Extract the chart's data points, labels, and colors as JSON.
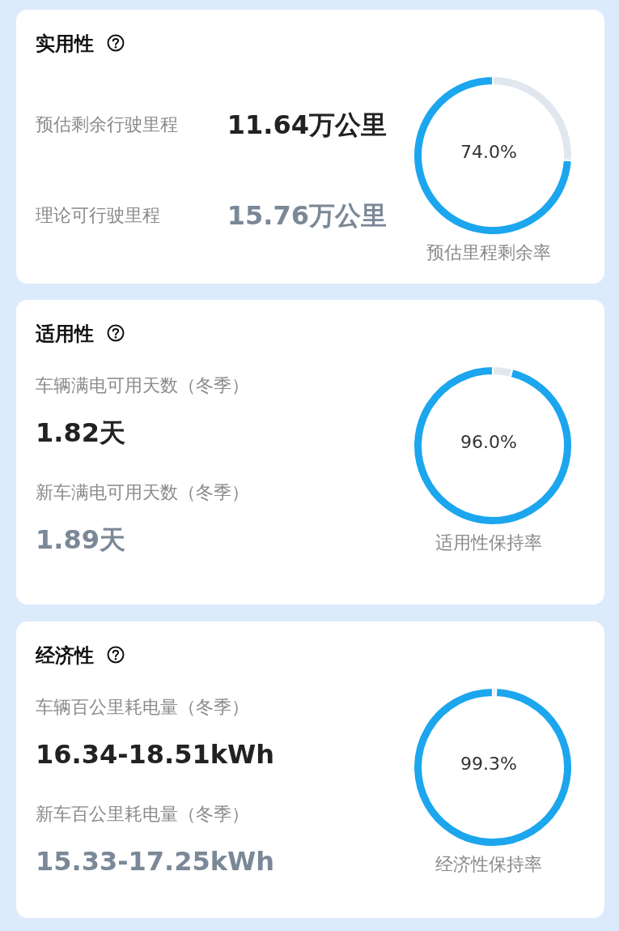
{
  "chart_data": [
    {
      "type": "donut",
      "xlabel": "预估里程剩余率",
      "categories": [
        null,
        null
      ],
      "values": [
        74.0,
        26.0
      ],
      "colors": [
        "#1ba6ee",
        "#e1e7ee"
      ],
      "value_labels": [
        "74.0%",
        null
      ],
      "annotations": [
        "实用性",
        "预估剩余行驶里程",
        "11.64万公里",
        "理论可行驶里程",
        "15.76万公里"
      ]
    },
    {
      "type": "donut",
      "xlabel": "适用性保持率",
      "categories": [
        null,
        null
      ],
      "values": [
        96.0,
        4.0
      ],
      "colors": [
        "#1ba6ee",
        "#e1e7ee"
      ],
      "value_labels": [
        "96.0%",
        null
      ],
      "annotations": [
        "适用性",
        "车辆满电可用天数（冬季）",
        "1.82天",
        "新车满电可用天数（冬季）",
        "1.89天"
      ]
    },
    {
      "type": "donut",
      "xlabel": "经济性保持率",
      "categories": [
        null,
        null
      ],
      "values": [
        99.3,
        0.7
      ],
      "colors": [
        "#1ba6ee",
        "#e1e7ee"
      ],
      "value_labels": [
        "99.3%",
        null
      ],
      "annotations": [
        "经济性",
        "车辆百公里耗电量（冬季）",
        "16.34-18.51kWh",
        "新车百公里耗电量（冬季）",
        "15.33-17.25kWh"
      ]
    }
  ]
}
